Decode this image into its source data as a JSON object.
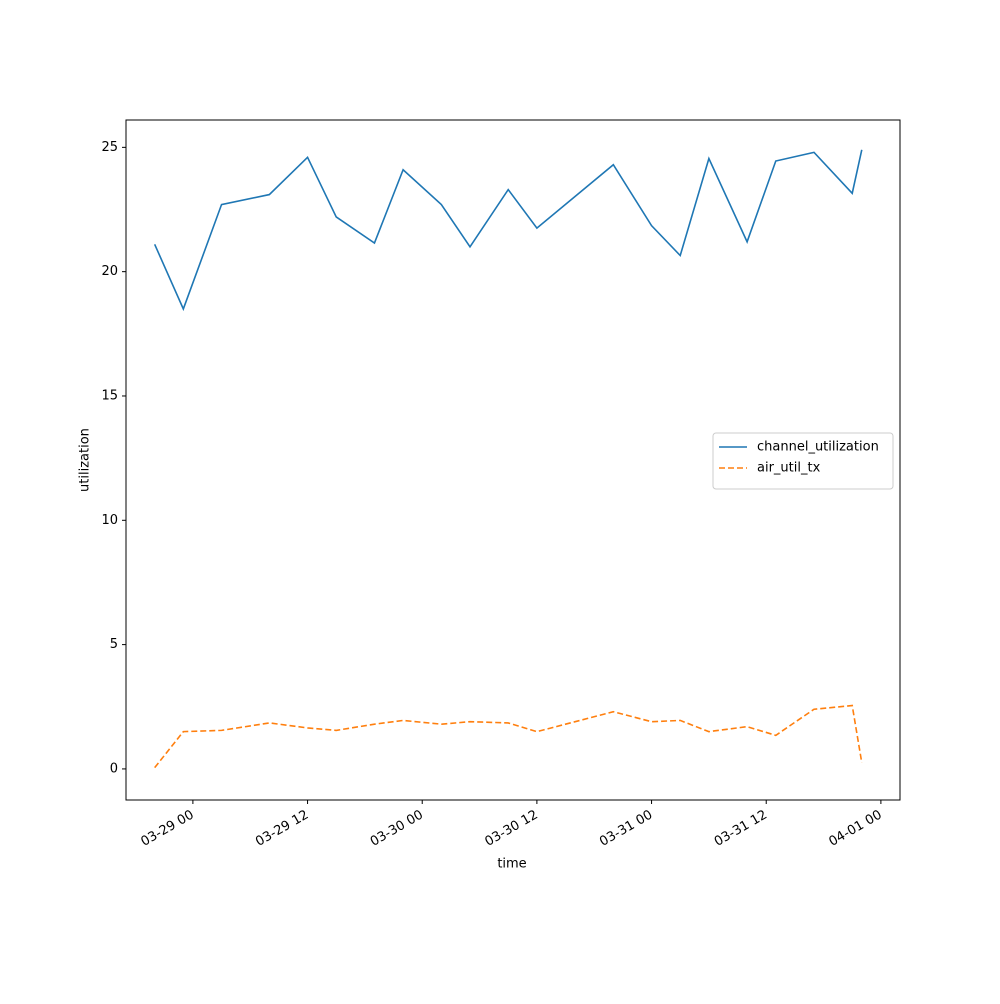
{
  "chart_data": {
    "type": "line",
    "x_label": "time",
    "y_label": "utilization",
    "x": [
      "03-28 20",
      "03-28 23",
      "03-29 03",
      "03-29 08",
      "03-29 12",
      "03-29 15",
      "03-29 19",
      "03-29 22",
      "03-30 02",
      "03-30 05",
      "03-30 09",
      "03-30 12",
      "03-30 20",
      "03-31 00",
      "03-31 03",
      "03-31 06",
      "03-31 10",
      "03-31 13",
      "03-31 17",
      "03-31 21",
      "03-31 22"
    ],
    "series": [
      {
        "name": "channel_utilization",
        "color": "#1f77b4",
        "dash": "solid",
        "values": [
          21.1,
          18.5,
          22.7,
          23.1,
          24.6,
          22.2,
          21.15,
          24.1,
          22.7,
          21.0,
          23.3,
          21.75,
          24.3,
          21.85,
          20.65,
          24.55,
          21.2,
          24.45,
          24.8,
          23.15,
          24.9
        ]
      },
      {
        "name": "air_util_tx",
        "color": "#ff7f0e",
        "dash": "dashed",
        "values": [
          0.05,
          1.5,
          1.55,
          1.85,
          1.65,
          1.55,
          1.8,
          1.95,
          1.8,
          1.9,
          1.85,
          1.5,
          2.3,
          1.9,
          1.95,
          1.5,
          1.7,
          1.35,
          2.4,
          2.55,
          0.25
        ]
      }
    ],
    "xlim": [
      "03-28 17",
      "04-01 02"
    ],
    "xticks": [
      "03-29 00",
      "03-29 12",
      "03-30 00",
      "03-30 12",
      "03-31 00",
      "03-31 12",
      "04-01 00"
    ],
    "ylim": [
      -1.25,
      26.1
    ],
    "yticks": [
      0,
      5,
      10,
      15,
      20,
      25
    ],
    "grid": false,
    "legend": "center right"
  }
}
